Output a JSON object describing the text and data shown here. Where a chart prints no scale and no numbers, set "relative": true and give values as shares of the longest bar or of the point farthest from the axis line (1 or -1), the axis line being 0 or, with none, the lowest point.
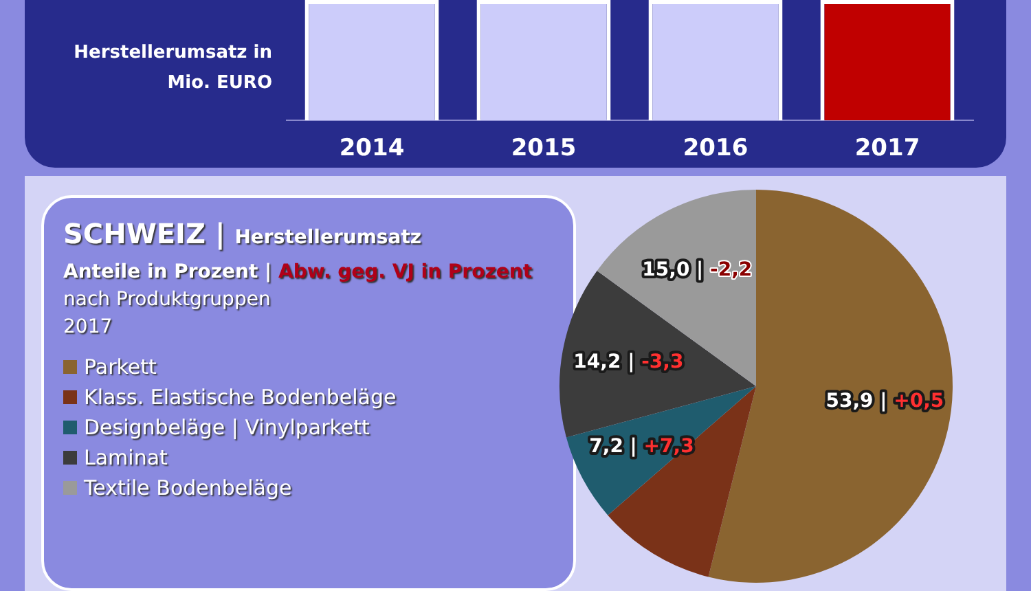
{
  "chart_data": [
    {
      "type": "bar",
      "ylabel": "Herstellerumsatz in Mio. EURO",
      "categories": [
        "2014",
        "2015",
        "2016",
        "2017"
      ],
      "values": [
        1,
        1,
        1,
        1
      ],
      "colors": [
        "#ccccfa",
        "#ccccfa",
        "#ccccfa",
        "#c00000"
      ],
      "relative": true
    },
    {
      "type": "pie",
      "title": "SCHWEIZ | Herstellerumsatz",
      "subtitle": "Anteile in Prozent | Abw. geg. VJ in Prozent",
      "annotations": [
        "nach Produktgruppen",
        "2017"
      ],
      "categories": [
        "Parkett",
        "Klass. Elastische Bodenbeläge",
        "Designbeläge | Vinylparkett",
        "Laminat",
        "Textile Bodenbeläge"
      ],
      "values": [
        53.9,
        9.7,
        7.2,
        14.2,
        15.0
      ],
      "colors": [
        "#8a6430",
        "#7a3218",
        "#1f5c6e",
        "#3c3c3c",
        "#9a9a9a"
      ],
      "value_labels": [
        "53,9 | +0,5",
        null,
        "7,2 | +7,3",
        "14,2 | -3,3",
        "15,0 | -2,2"
      ],
      "legend": "left"
    }
  ]
}
